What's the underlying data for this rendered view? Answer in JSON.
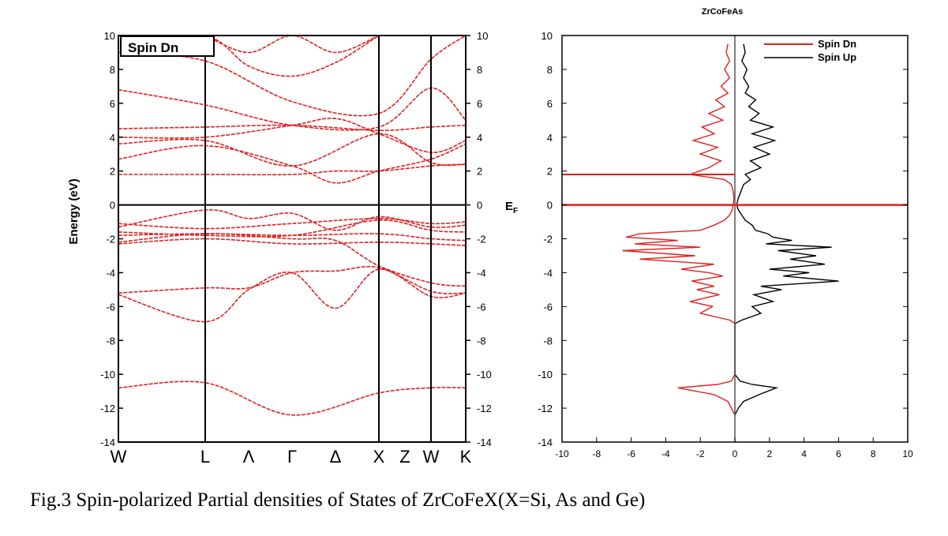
{
  "caption": "Fig.3 Spin-polarized Partial densities of States of ZrCoFeX(X=Si, As and Ge)",
  "chart_data": [
    {
      "type": "line",
      "panel": "band-structure",
      "legend_box": "Spin Dn",
      "ylabel": "Energy (eV)",
      "right_axis_label": "E_F",
      "ylim": [
        -14,
        10
      ],
      "yticks_left": [
        "-14",
        "-12",
        "-10",
        "-8",
        "-6",
        "-4",
        "-2",
        "0",
        "2",
        "4",
        "6",
        "8",
        "10"
      ],
      "yticks_right": [
        "-14",
        "-12",
        "-10",
        "-8",
        "-6",
        "-4",
        "-2",
        "0",
        "2",
        "4",
        "6",
        "8",
        "10"
      ],
      "k_points": [
        {
          "label": "W",
          "x": 0.0
        },
        {
          "label": "L",
          "x": 1.0
        },
        {
          "label": "Λ",
          "x": 1.5
        },
        {
          "label": "Γ",
          "x": 2.0
        },
        {
          "label": "Δ",
          "x": 2.5
        },
        {
          "label": "X",
          "x": 3.0
        },
        {
          "label": "Z",
          "x": 3.3
        },
        {
          "label": "W",
          "x": 3.6
        },
        {
          "label": "K",
          "x": 4.0
        }
      ],
      "high_symmetry_lines": [
        1.0,
        3.0,
        3.6
      ],
      "fermi_level": 0,
      "line_color": "#e02020",
      "series": [
        {
          "x": [
            0,
            1.0,
            2.0,
            3.0,
            3.6,
            4.0
          ],
          "y": [
            -10.8,
            -10.5,
            -12.4,
            -11.1,
            -10.8,
            -10.8
          ]
        },
        {
          "x": [
            0,
            1.0,
            1.5,
            2.0,
            2.5,
            3.0,
            3.6,
            4.0
          ],
          "y": [
            -5.3,
            -6.9,
            -5.0,
            -4.0,
            -6.1,
            -3.8,
            -5.4,
            -5.2
          ]
        },
        {
          "x": [
            0,
            1.0,
            1.5,
            2.0,
            2.5,
            3.0,
            3.6,
            4.0
          ],
          "y": [
            -5.2,
            -4.9,
            -4.9,
            -4.0,
            -3.9,
            -3.7,
            -5.1,
            -5.2
          ]
        },
        {
          "x": [
            0,
            1.0,
            2.0,
            3.0,
            3.6,
            4.0
          ],
          "y": [
            -2.3,
            -2.0,
            -2.3,
            -2.2,
            -2.3,
            -2.4
          ]
        },
        {
          "x": [
            0,
            1.0,
            2.0,
            2.5,
            3.0,
            3.6,
            4.0
          ],
          "y": [
            -2.2,
            -1.7,
            -2.0,
            -2.1,
            -3.6,
            -4.6,
            -4.8
          ]
        },
        {
          "x": [
            0,
            1.0,
            2.0,
            3.0,
            3.6,
            4.0
          ],
          "y": [
            -1.8,
            -1.7,
            -1.8,
            -1.7,
            -2.0,
            -2.1
          ]
        },
        {
          "x": [
            0,
            1.0,
            2.0,
            3.0,
            3.6,
            4.0
          ],
          "y": [
            -1.6,
            -1.8,
            -1.8,
            -0.9,
            -1.5,
            -1.6
          ]
        },
        {
          "x": [
            0,
            1.0,
            1.5,
            2.0,
            2.5,
            3.0,
            3.6,
            4.0
          ],
          "y": [
            -1.3,
            -0.3,
            -0.8,
            -0.5,
            -1.5,
            -0.7,
            -1.3,
            -1.2
          ]
        },
        {
          "x": [
            0,
            1.0,
            2.0,
            3.0,
            3.6,
            4.0
          ],
          "y": [
            -1.1,
            -1.4,
            -1.1,
            -0.8,
            -1.1,
            -1.0
          ]
        },
        {
          "x": [
            0,
            1.0,
            2.0,
            2.5,
            3.0,
            3.6,
            4.0
          ],
          "y": [
            1.8,
            1.8,
            1.8,
            2.0,
            2.0,
            2.3,
            2.4
          ]
        },
        {
          "x": [
            0,
            1.0,
            2.0,
            2.5,
            3.0,
            3.6,
            4.0
          ],
          "y": [
            2.7,
            3.5,
            2.3,
            1.3,
            2.0,
            2.7,
            3.6
          ]
        },
        {
          "x": [
            0,
            1.0,
            2.0,
            3.0,
            3.6,
            4.0
          ],
          "y": [
            3.6,
            3.8,
            2.3,
            4.2,
            2.5,
            2.4
          ]
        },
        {
          "x": [
            0,
            1.0,
            2.0,
            2.5,
            3.0,
            3.6,
            4.0
          ],
          "y": [
            4.0,
            4.0,
            4.7,
            5.1,
            4.2,
            3.1,
            3.8
          ]
        },
        {
          "x": [
            0,
            1.0,
            2.0,
            3.0,
            3.6,
            4.0
          ],
          "y": [
            4.5,
            4.6,
            4.7,
            4.4,
            4.6,
            4.7
          ]
        },
        {
          "x": [
            0,
            1.0,
            2.0,
            3.0,
            3.6,
            4.0
          ],
          "y": [
            6.8,
            5.9,
            4.7,
            4.6,
            6.9,
            5.0
          ]
        },
        {
          "x": [
            0,
            1.0,
            2.0,
            3.0,
            3.6,
            4.0
          ],
          "y": [
            9.0,
            8.5,
            6.1,
            5.4,
            8.6,
            10.0
          ]
        },
        {
          "x": [
            0,
            1.0,
            1.5,
            2.0,
            2.5,
            3.0
          ],
          "y": [
            10.0,
            10.0,
            8.2,
            7.6,
            8.4,
            10.0
          ]
        },
        {
          "x": [
            1.0,
            1.5,
            2.0,
            2.5,
            3.0
          ],
          "y": [
            10.0,
            9.0,
            10.0,
            9.0,
            10.0
          ]
        }
      ]
    },
    {
      "type": "line",
      "panel": "dos",
      "title": "ZrCoFeAs",
      "xlim": [
        -10,
        10
      ],
      "ylim": [
        -14,
        10
      ],
      "xticks": [
        "-10",
        "-8",
        "-6",
        "-4",
        "-2",
        "0",
        "2",
        "4",
        "6",
        "8",
        "10"
      ],
      "yticks": [
        "-14",
        "-12",
        "-10",
        "-8",
        "-6",
        "-4",
        "-2",
        "0",
        "2",
        "4",
        "6",
        "8",
        "10"
      ],
      "legend_position": "top-right",
      "fermi_level": 0,
      "series": [
        {
          "name": "Spin Dn",
          "color": "#e02020",
          "energy": [
            -12.4,
            -12.0,
            -11.6,
            -11.2,
            -10.8,
            -10.6,
            -10.4,
            -10.0,
            -9.0,
            -8.0,
            -7.0,
            -6.8,
            -6.4,
            -6.0,
            -5.7,
            -5.3,
            -5.0,
            -4.8,
            -4.5,
            -4.2,
            -4.0,
            -3.8,
            -3.5,
            -3.2,
            -3.0,
            -2.7,
            -2.5,
            -2.3,
            -2.1,
            -1.9,
            -1.7,
            -1.5,
            -1.2,
            -0.9,
            -0.6,
            -0.3,
            0.0,
            0.4,
            0.8,
            1.2,
            1.5,
            1.8,
            2.2,
            2.6,
            3.0,
            3.4,
            3.8,
            4.2,
            4.6,
            5.0,
            5.4,
            5.8,
            6.2,
            6.6,
            7.0,
            7.5,
            8.0,
            8.5,
            9.0,
            9.5
          ],
          "dos": [
            0,
            -0.2,
            -0.4,
            -1.2,
            -3.3,
            -1.0,
            -0.2,
            0,
            0,
            0,
            0,
            -0.3,
            -2.0,
            -1.3,
            -2.6,
            -0.9,
            -2.2,
            -1.2,
            -2.5,
            -0.7,
            -1.5,
            -3.1,
            -1.2,
            -5.5,
            -2.3,
            -6.5,
            -2.0,
            -5.8,
            -3.3,
            -6.3,
            -5.5,
            -2.0,
            -1.2,
            -0.6,
            -0.3,
            -0.15,
            -0.1,
            -0.05,
            -0.1,
            -0.2,
            -0.6,
            -2.6,
            -1.5,
            -0.8,
            -2.0,
            -1.0,
            -2.4,
            -1.2,
            -1.9,
            -0.7,
            -1.5,
            -0.6,
            -1.1,
            -0.4,
            -0.8,
            -0.3,
            -0.6,
            -0.3,
            -0.5,
            -0.4
          ]
        },
        {
          "name": "Spin Up",
          "color": "#000000",
          "energy": [
            -12.4,
            -12.0,
            -11.6,
            -11.2,
            -10.8,
            -10.6,
            -10.4,
            -10.0,
            -9.0,
            -8.0,
            -7.0,
            -6.8,
            -6.4,
            -6.0,
            -5.7,
            -5.3,
            -5.0,
            -4.8,
            -4.5,
            -4.2,
            -4.0,
            -3.8,
            -3.5,
            -3.2,
            -3.0,
            -2.7,
            -2.5,
            -2.3,
            -2.1,
            -1.9,
            -1.7,
            -1.5,
            -1.2,
            -0.9,
            -0.6,
            -0.3,
            0.0,
            0.4,
            0.8,
            1.2,
            1.5,
            1.8,
            2.2,
            2.6,
            3.0,
            3.4,
            3.8,
            4.2,
            4.6,
            5.0,
            5.4,
            5.8,
            6.2,
            6.6,
            7.0,
            7.5,
            8.0,
            8.5,
            9.0,
            9.5
          ],
          "dos": [
            0,
            0.2,
            0.5,
            1.4,
            2.4,
            1.0,
            0.3,
            0,
            0,
            0,
            0,
            0.4,
            1.5,
            1.0,
            2.2,
            1.1,
            2.7,
            1.5,
            6.0,
            2.8,
            4.3,
            2.0,
            5.2,
            3.2,
            4.7,
            2.5,
            5.6,
            1.8,
            3.3,
            2.2,
            1.9,
            1.2,
            1.0,
            0.6,
            0.4,
            0.2,
            0.1,
            0.2,
            0.35,
            0.5,
            0.9,
            0.6,
            1.5,
            0.9,
            2.0,
            1.1,
            2.3,
            1.0,
            2.2,
            0.9,
            1.4,
            0.8,
            1.2,
            0.6,
            0.8,
            0.5,
            0.7,
            0.4,
            0.6,
            0.5
          ]
        }
      ]
    }
  ]
}
